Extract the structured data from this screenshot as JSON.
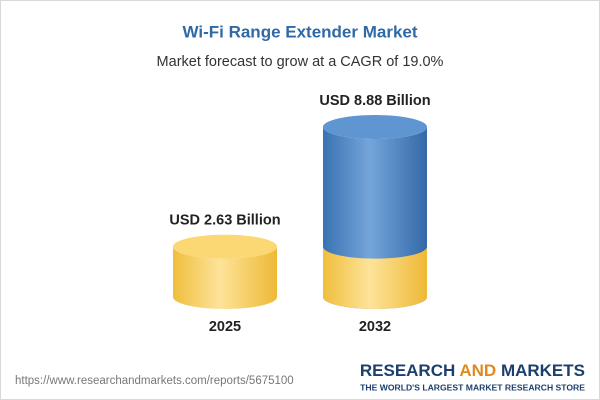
{
  "chart_data": {
    "type": "cylinder-bar",
    "title": "Wi-Fi Range Extender Market",
    "subtitle": "Market forecast to grow at a CAGR of 19.0%",
    "categories": [
      "2025",
      "2032"
    ],
    "values": [
      2.63,
      8.88
    ],
    "value_labels": [
      "USD 2.63 Billion",
      "USD 8.88 Billion"
    ],
    "colors": [
      "#f3c64a",
      "#4a82c0"
    ]
  },
  "footer": {
    "source_url": "https://www.researchandmarkets.com/reports/5675100",
    "brand": [
      "RESEARCH",
      "AND",
      "MARKETS"
    ],
    "tagline": "THE WORLD'S LARGEST MARKET RESEARCH STORE"
  }
}
